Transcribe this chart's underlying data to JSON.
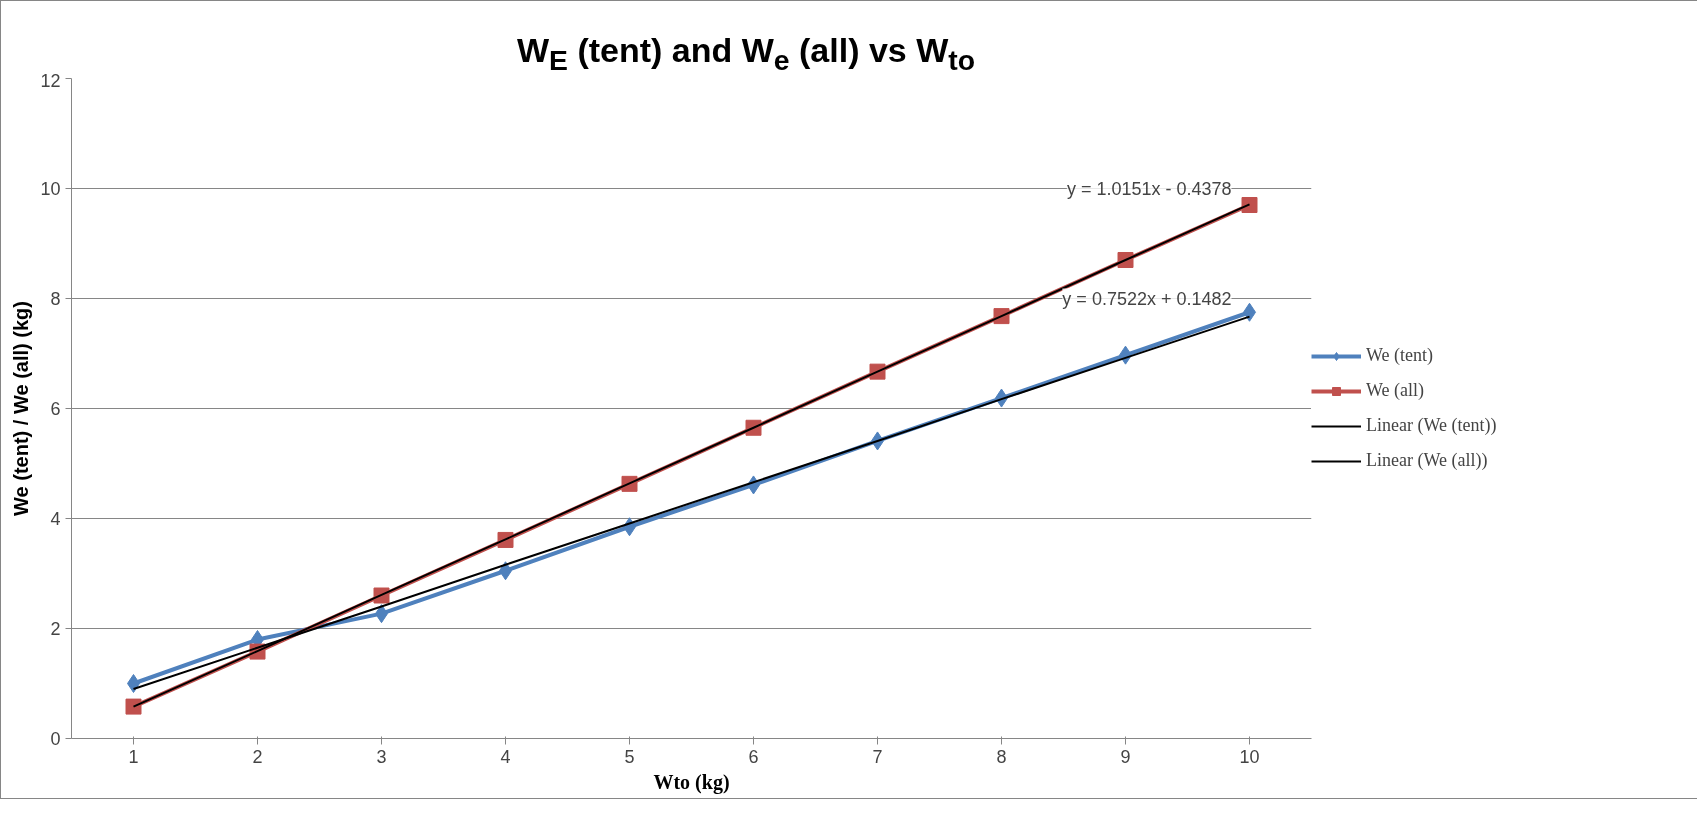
{
  "chart_data": {
    "type": "line",
    "title": "W$_{E}$ (tent) and W$_{e}$ (all) vs W$_{to}$",
    "xlabel": "Wto (kg)",
    "ylabel": "We (tent) / We (all) (kg)",
    "x": [
      1,
      2,
      3,
      4,
      5,
      6,
      7,
      8,
      9,
      10
    ],
    "xlim": [
      0.5,
      10.5
    ],
    "xticks": [
      1,
      2,
      3,
      4,
      5,
      6,
      7,
      8,
      9,
      10
    ],
    "ylim": [
      0,
      12
    ],
    "yticks": [
      0,
      2,
      4,
      6,
      8,
      10,
      12
    ],
    "grid": "y",
    "legend": "right",
    "series": [
      {
        "name": "We (tent)",
        "color": "#4f81bd",
        "marker": "diamond",
        "values": [
          1.0,
          1.8,
          2.27,
          3.05,
          3.85,
          4.61,
          5.41,
          6.19,
          6.97,
          7.75
        ]
      },
      {
        "name": "We (all)",
        "color": "#c0504d",
        "marker": "square",
        "values": [
          0.58,
          1.58,
          2.6,
          3.61,
          4.63,
          5.65,
          6.67,
          7.68,
          8.7,
          9.7
        ]
      },
      {
        "name": "Linear (We (tent))",
        "color": "#000000",
        "marker": "none",
        "values": [
          0.9,
          1.65,
          2.4,
          3.16,
          3.91,
          4.66,
          5.41,
          6.17,
          6.92,
          7.67
        ]
      },
      {
        "name": "Linear (We (all))",
        "color": "#000000",
        "marker": "none",
        "values": [
          0.58,
          1.59,
          2.61,
          3.62,
          4.64,
          5.65,
          6.67,
          7.68,
          8.7,
          9.71
        ]
      }
    ],
    "annotations": [
      "y = 1.0151x - 0.4378",
      "y = 0.7522x + 0.1482"
    ]
  }
}
